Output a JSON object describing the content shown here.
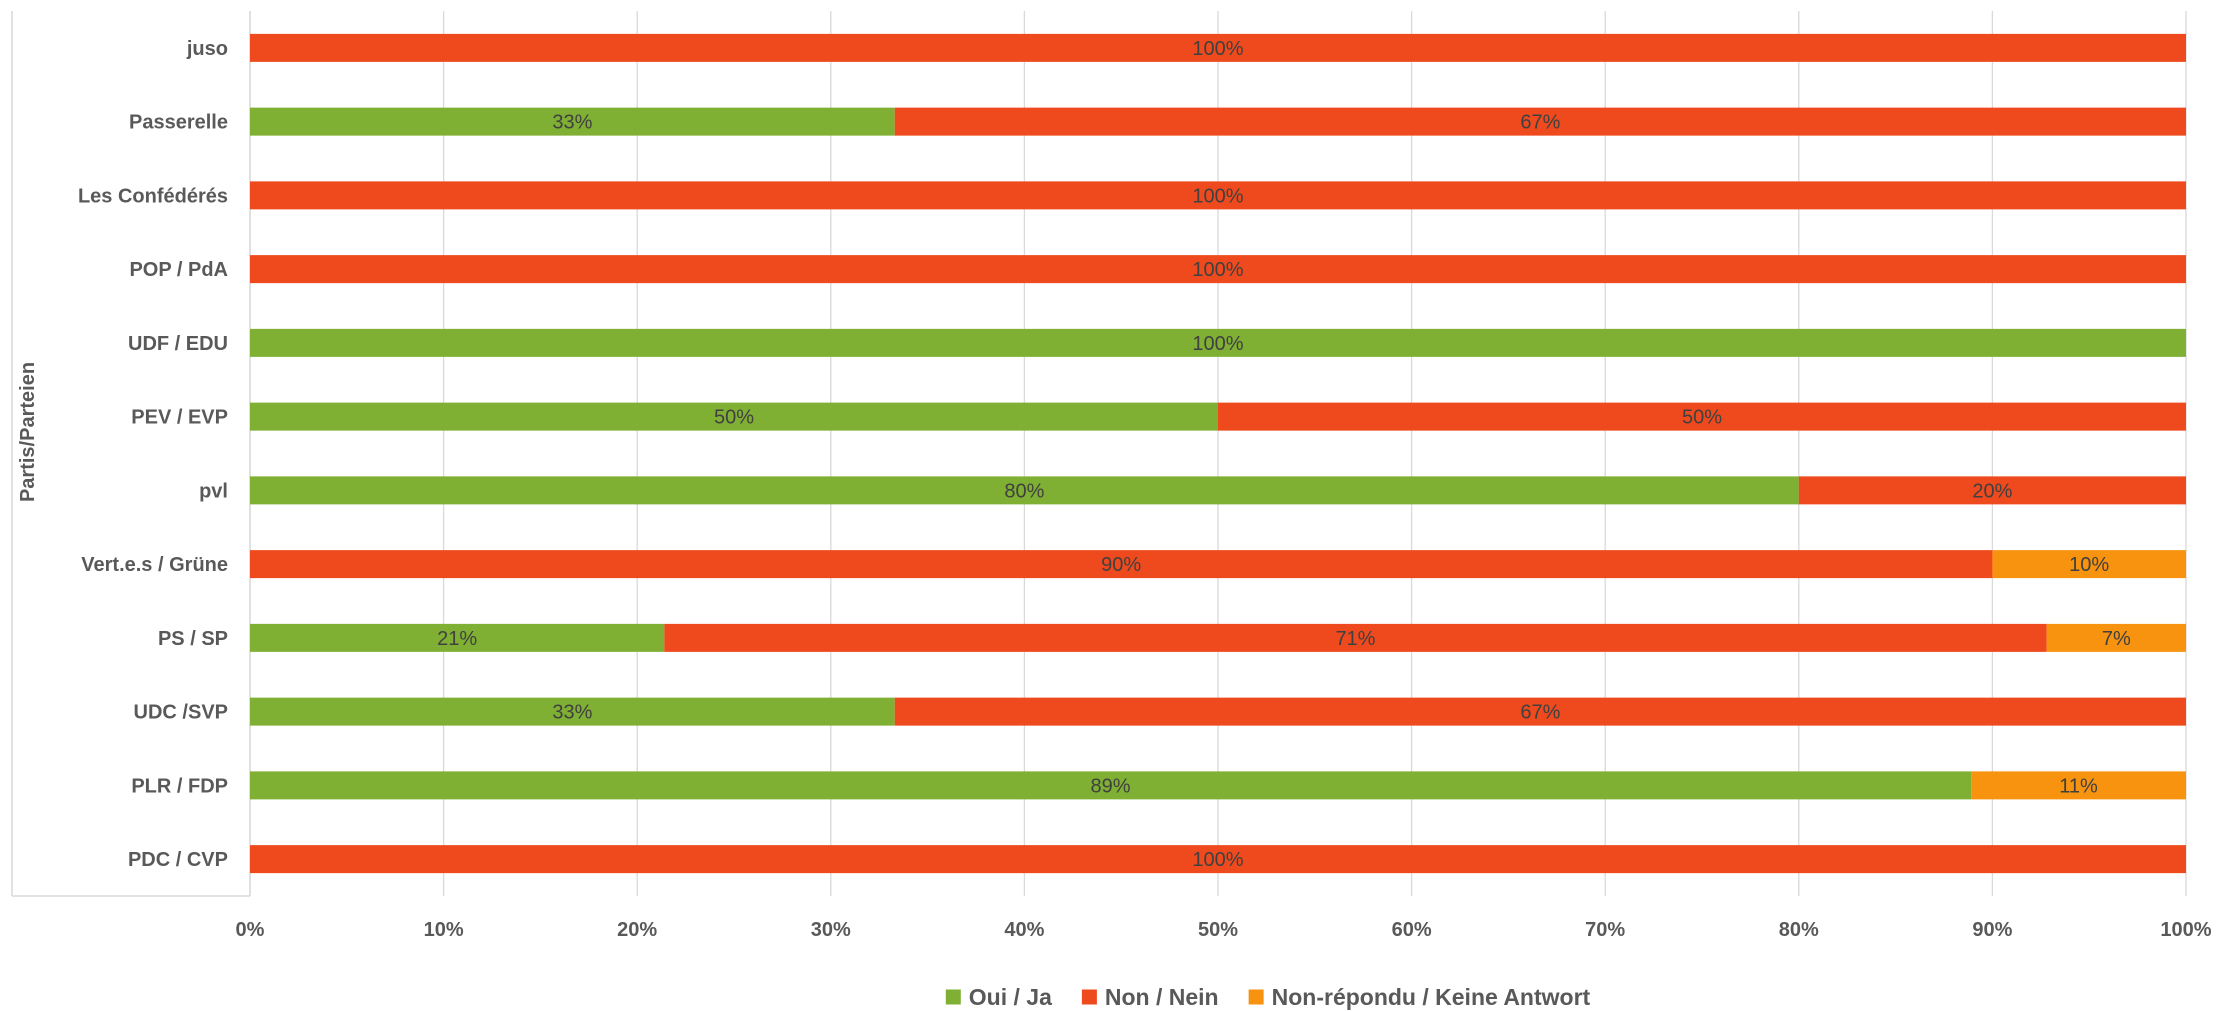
{
  "chart_data": {
    "type": "bar",
    "orientation": "horizontal",
    "stacked": "percent",
    "title": "",
    "xlabel": "",
    "ylabel": "Partis/Parteien",
    "xlim": [
      0,
      100
    ],
    "x_ticks": [
      "0%",
      "10%",
      "20%",
      "30%",
      "40%",
      "50%",
      "60%",
      "70%",
      "80%",
      "90%",
      "100%"
    ],
    "grid": true,
    "legend_position": "bottom",
    "categories": [
      "juso",
      "Passerelle",
      "Les Confédérés",
      "POP / PdA",
      "UDF / EDU",
      "PEV / EVP",
      "pvl",
      "Vert.e.s / Grüne",
      "PS / SP",
      "UDC /SVP",
      "PLR / FDP",
      "PDC / CVP"
    ],
    "series": [
      {
        "name": "Oui / Ja",
        "color": "#7fb034",
        "values": [
          0,
          33.3,
          0,
          0,
          100,
          50,
          80,
          0,
          21.4,
          33.3,
          88.9,
          0
        ],
        "labels": [
          "",
          "33%",
          "",
          "",
          "100%",
          "50%",
          "80%",
          "",
          "21%",
          "33%",
          "89%",
          ""
        ]
      },
      {
        "name": "Non / Nein",
        "color": "#ee4a1d",
        "values": [
          100,
          66.7,
          100,
          100,
          0,
          50,
          20,
          90,
          71.4,
          66.7,
          0,
          100
        ],
        "labels": [
          "100%",
          "67%",
          "100%",
          "100%",
          "",
          "50%",
          "20%",
          "90%",
          "71%",
          "67%",
          "",
          "100%"
        ]
      },
      {
        "name": "Non-répondu / Keine Antwort",
        "color": "#f7930e",
        "values": [
          0,
          0,
          0,
          0,
          0,
          0,
          0,
          10,
          7.2,
          0,
          11.1,
          0
        ],
        "labels": [
          "",
          "",
          "",
          "",
          "",
          "",
          "",
          "10%",
          "7%",
          "",
          "11%",
          ""
        ]
      }
    ]
  }
}
